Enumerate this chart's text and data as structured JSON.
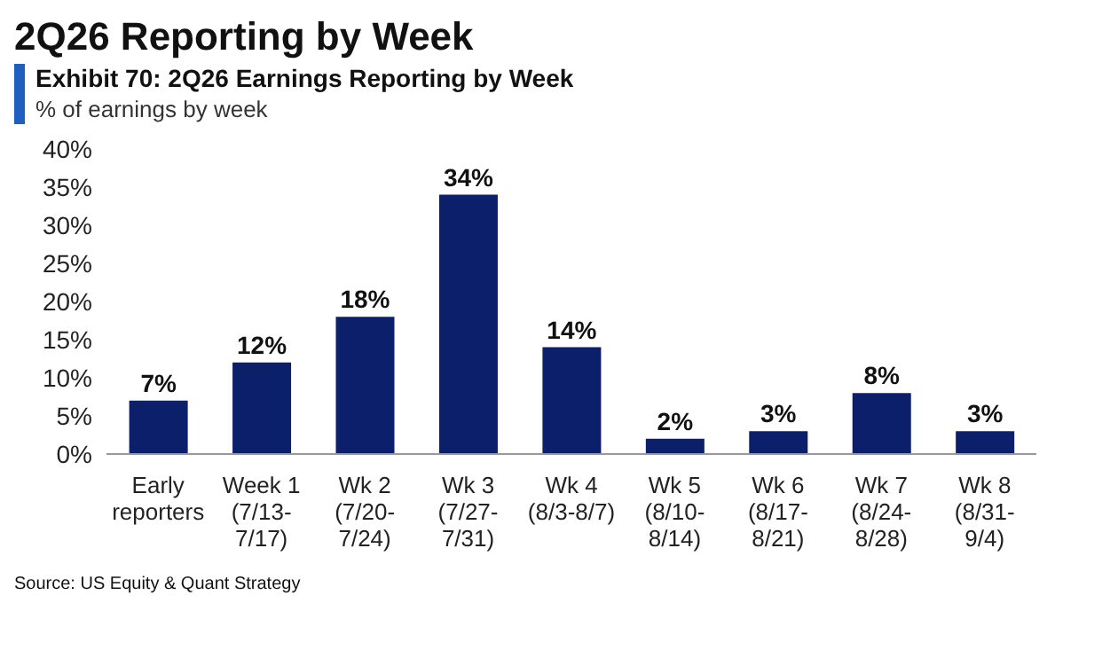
{
  "chart_data": {
    "type": "bar",
    "title": "2Q26 Reporting by Week",
    "subtitle": "Exhibit 70: 2Q26 Earnings Reporting by Week",
    "ylabel": "% of earnings by week",
    "categories": [
      "Early\nreporters",
      "Week 1\n(7/13-\n7/17)",
      "Wk 2\n(7/20-\n7/24)",
      "Wk 3\n(7/27-\n7/31)",
      "Wk 4\n(8/3-8/7)",
      "Wk 5\n(8/10-\n8/14)",
      "Wk 6\n(8/17-\n8/21)",
      "Wk 7\n(8/24-\n8/28)",
      "Wk 8\n(8/31-\n9/4)"
    ],
    "values": [
      7,
      12,
      18,
      34,
      14,
      2,
      3,
      8,
      3
    ],
    "value_labels": [
      "7%",
      "12%",
      "18%",
      "34%",
      "14%",
      "2%",
      "3%",
      "8%",
      "3%"
    ],
    "color": "#0c1f6b",
    "ylim": [
      0,
      40
    ],
    "yticks": [
      {
        "value": 0,
        "label": "0%"
      },
      {
        "value": 5,
        "label": "5%"
      },
      {
        "value": 10,
        "label": "10%"
      },
      {
        "value": 15,
        "label": "15%"
      },
      {
        "value": 20,
        "label": "20%"
      },
      {
        "value": 25,
        "label": "25%"
      },
      {
        "value": 30,
        "label": "30%"
      },
      {
        "value": 35,
        "label": "35%"
      },
      {
        "value": 40,
        "label": "40%"
      }
    ],
    "grid": false,
    "annotations": [
      "Source: US Equity & Quant Strategy"
    ]
  }
}
